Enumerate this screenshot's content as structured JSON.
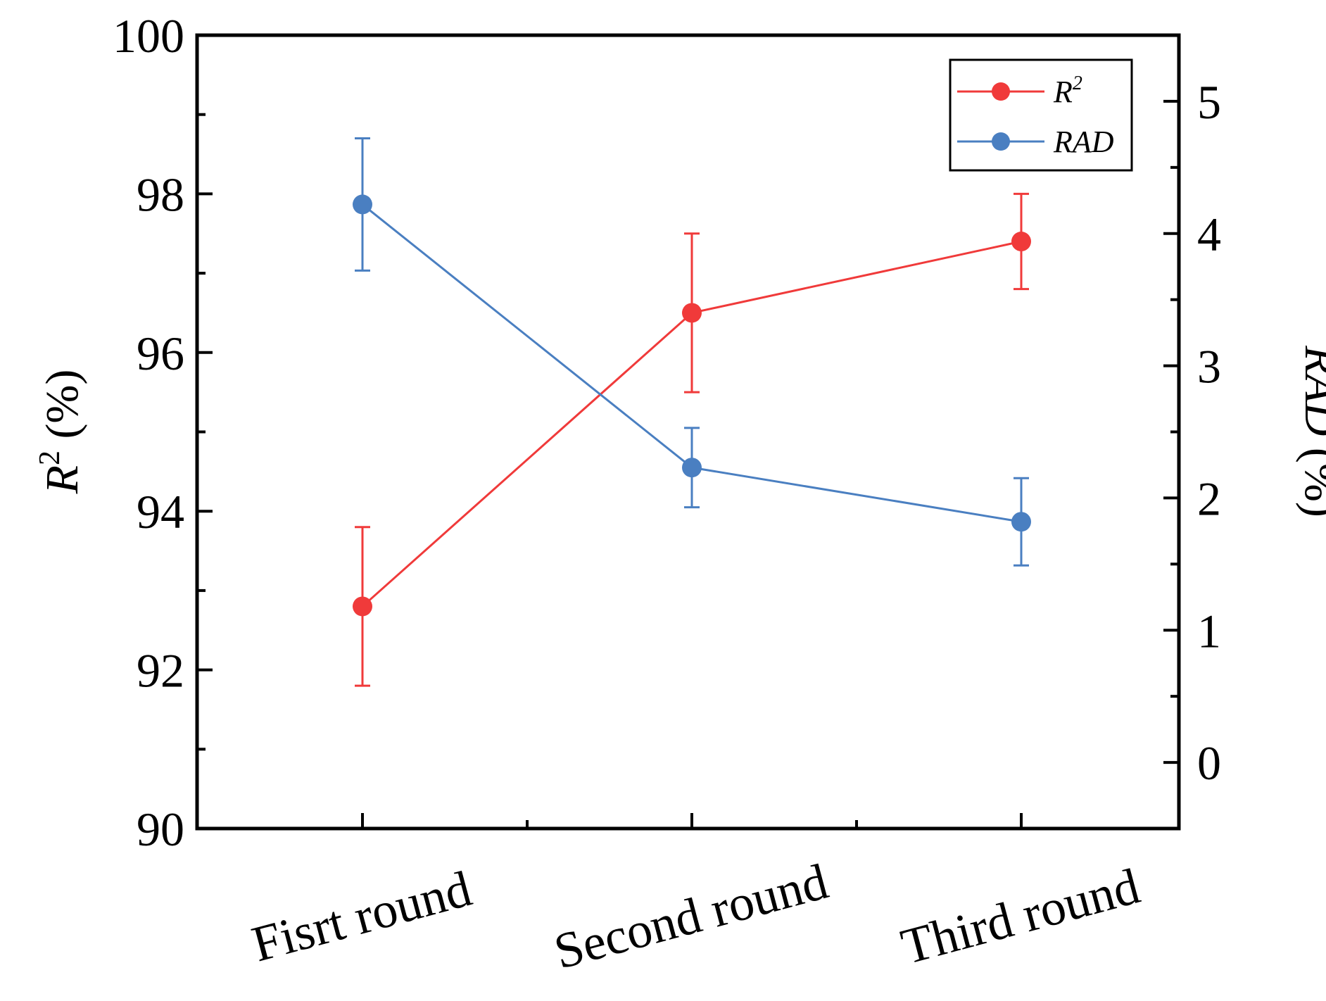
{
  "chart_data": {
    "type": "line",
    "categories": [
      "Fisrt round",
      "Second round",
      "Third round"
    ],
    "left_axis": {
      "label_main": "R",
      "label_sup": "2",
      "label_unit": " (%)",
      "ylim": [
        90,
        100
      ],
      "ticks": [
        90,
        92,
        94,
        96,
        98,
        100
      ],
      "tick_labels": [
        "90",
        "92",
        "94",
        "96",
        "98",
        "100"
      ]
    },
    "right_axis": {
      "label_main": "RAD",
      "label_unit": " (%)",
      "ylim": [
        -0.5,
        5.5
      ],
      "ticks": [
        0,
        1,
        2,
        3,
        4,
        5
      ],
      "tick_labels": [
        "0",
        "1",
        "2",
        "3",
        "4",
        "5"
      ]
    },
    "series": [
      {
        "name": "R",
        "legend_main": "R",
        "legend_sup": "2",
        "axis": "left",
        "color": "#f03a3a",
        "values": [
          92.8,
          96.5,
          97.4
        ],
        "errors": [
          1.0,
          1.0,
          0.6
        ]
      },
      {
        "name": "RAD",
        "legend_main": "RAD",
        "legend_sup": "",
        "axis": "right",
        "color": "#4a7fc1",
        "values": [
          4.22,
          2.23,
          1.82
        ],
        "errors": [
          0.5,
          0.3,
          0.33
        ]
      }
    ],
    "legend_position": "top-right",
    "grid": false
  }
}
